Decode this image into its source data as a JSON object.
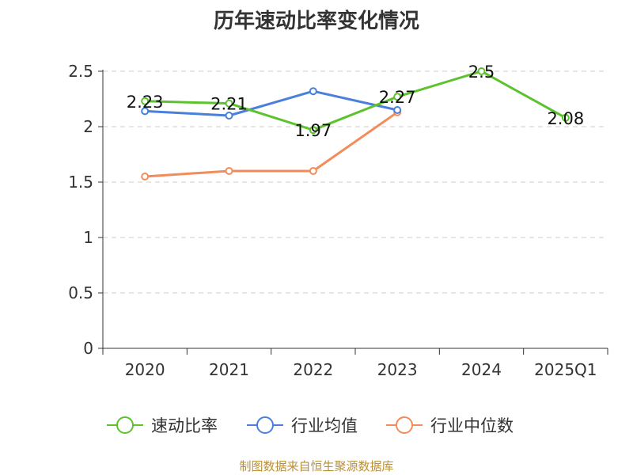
{
  "chart_data": {
    "type": "line",
    "title": "历年速动比率变化情况",
    "categories": [
      "2020",
      "2021",
      "2022",
      "2023",
      "2024",
      "2025Q1"
    ],
    "ylim": [
      0,
      2.5
    ],
    "yticks": [
      "0",
      "0.5",
      "1",
      "1.5",
      "2",
      "2.5"
    ],
    "grid": true,
    "legend_position": "bottom",
    "series": [
      {
        "name": "速动比率",
        "color": "#5cc22d",
        "values": [
          2.23,
          2.21,
          1.97,
          2.27,
          2.5,
          2.08
        ],
        "labels": [
          "2.23",
          "2.21",
          "1.97",
          "2.27",
          "2.5",
          "2.08"
        ]
      },
      {
        "name": "行业均值",
        "color": "#4a7fdc",
        "values": [
          2.14,
          2.1,
          2.32,
          2.15,
          null,
          null
        ]
      },
      {
        "name": "行业中位数",
        "color": "#f28c5a",
        "values": [
          1.55,
          1.6,
          1.6,
          2.13,
          null,
          null
        ]
      }
    ]
  },
  "footer": {
    "source": "制图数据来自恒生聚源数据库"
  }
}
